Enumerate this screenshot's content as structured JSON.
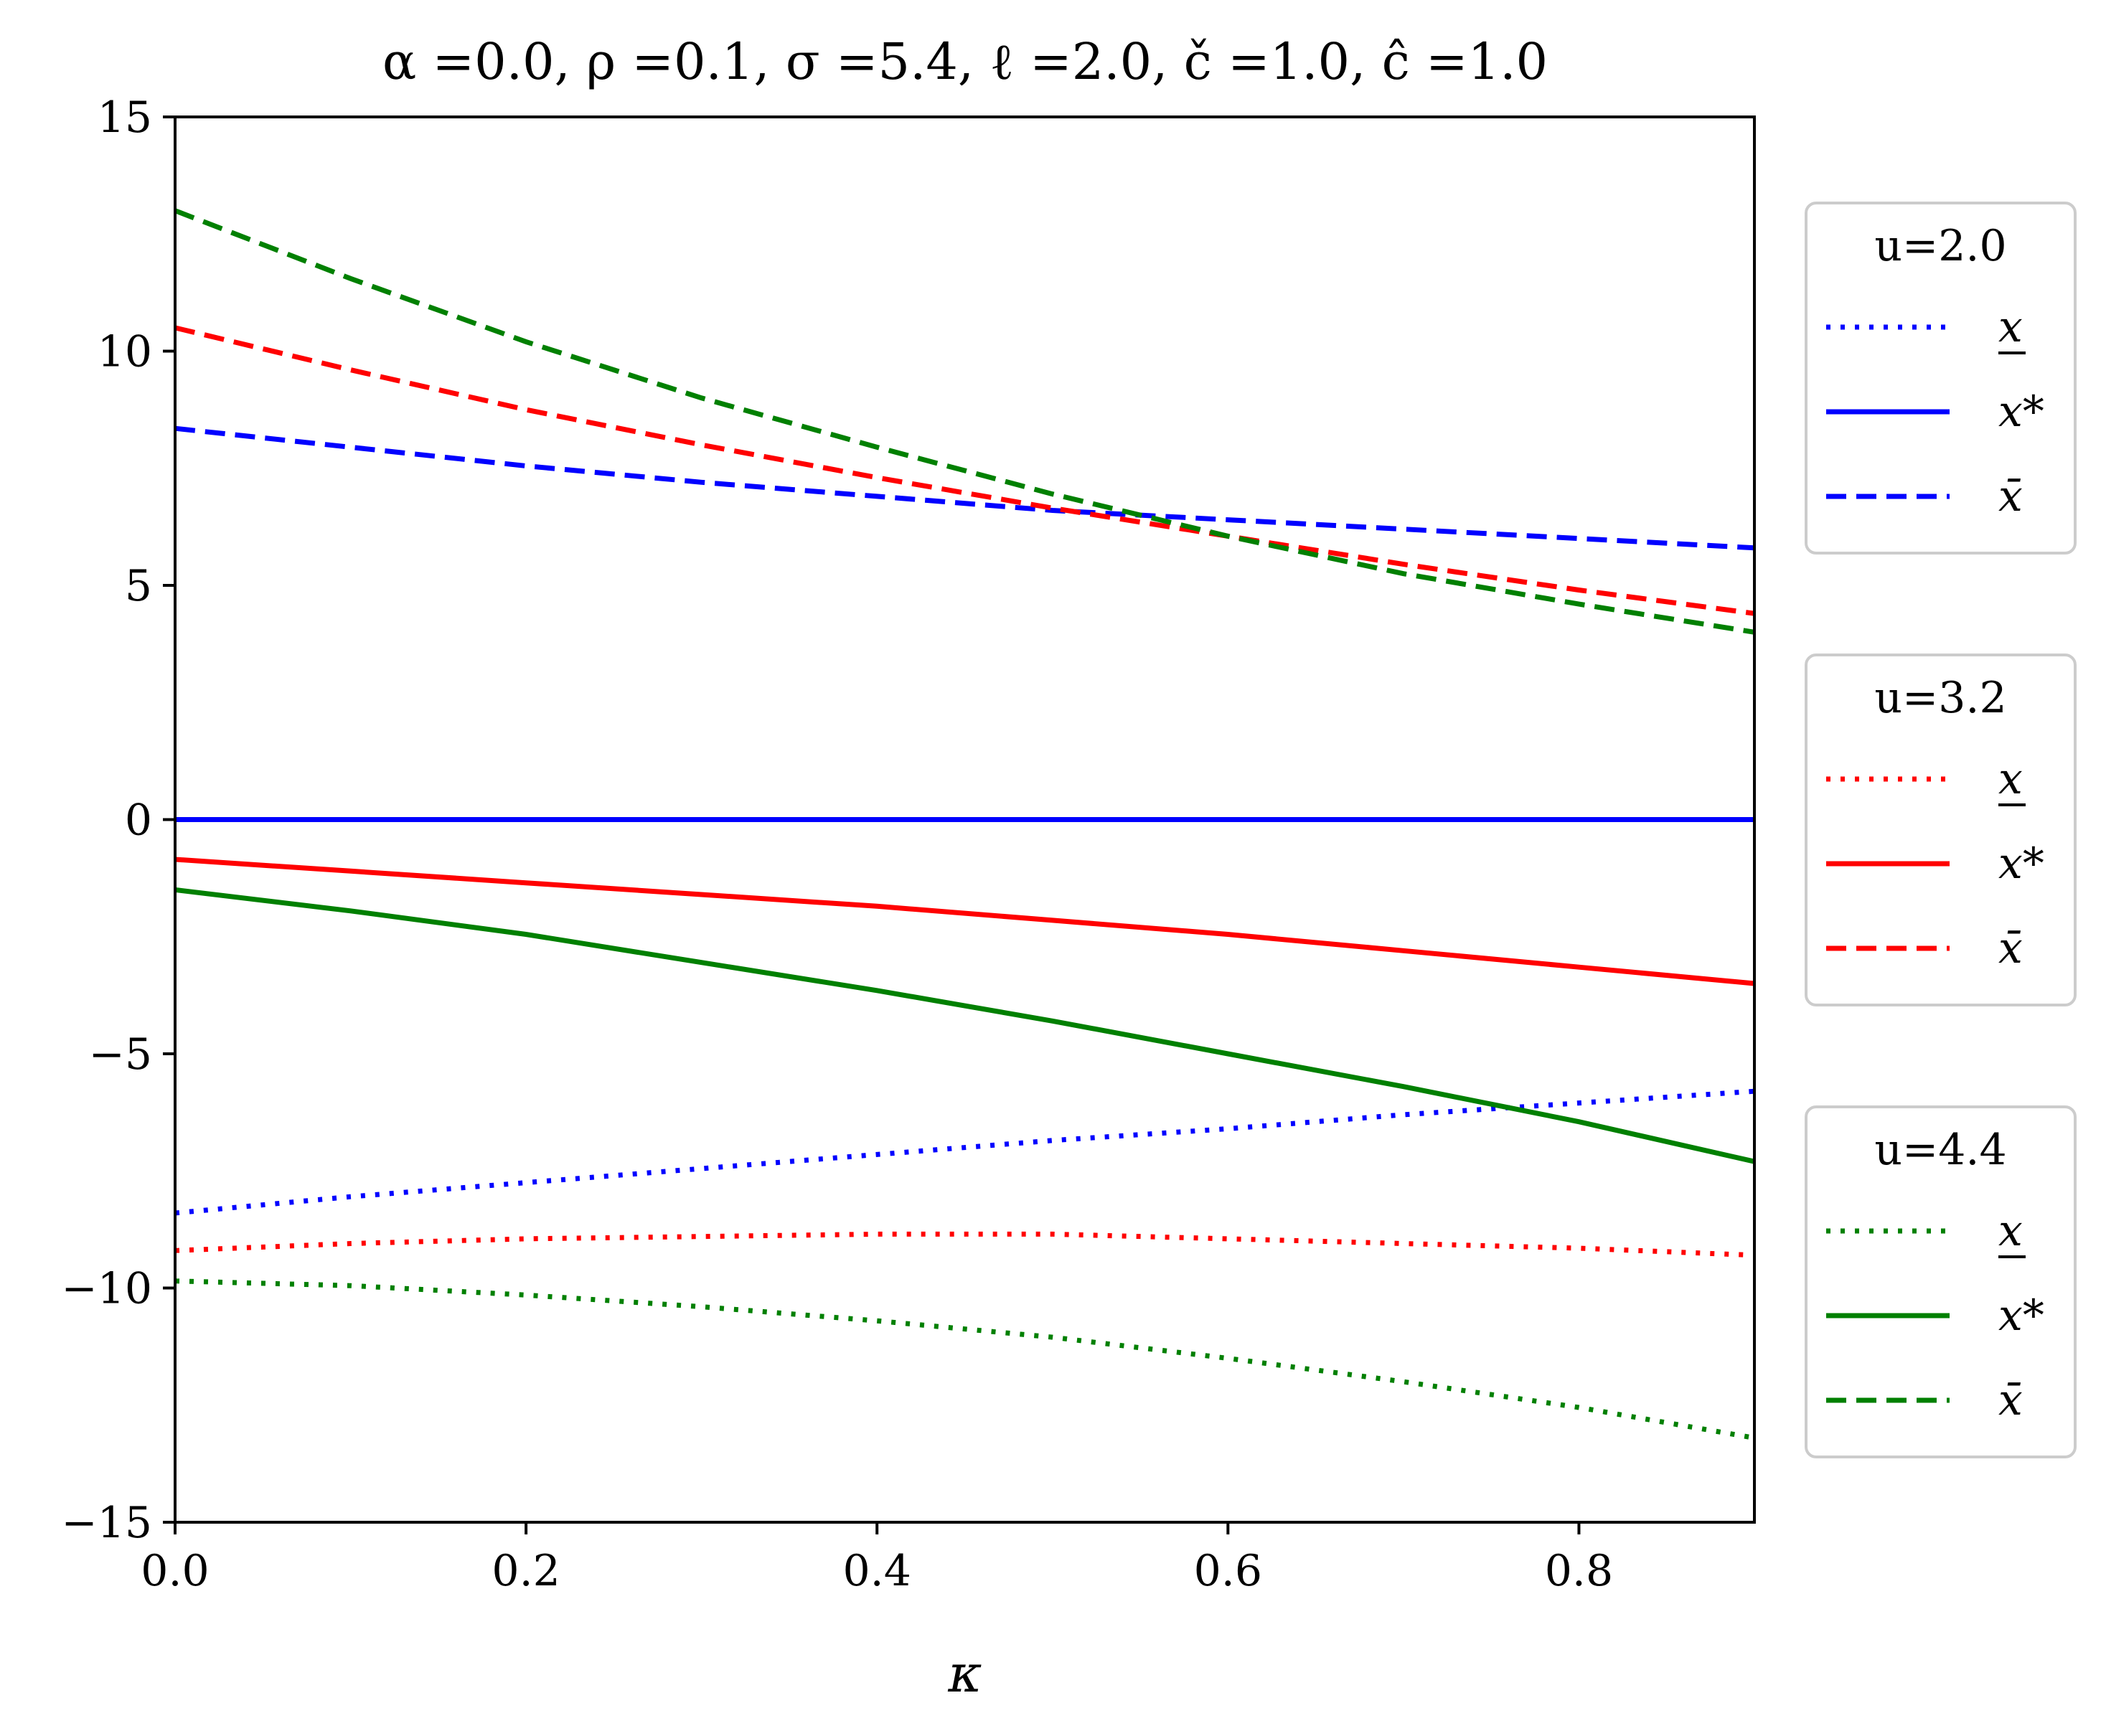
{
  "chart_data": {
    "type": "line",
    "title": "α =0.0, ρ =0.1, σ =5.4, ℓ =2.0, č =1.0, ĉ =1.0",
    "xlabel": "κ",
    "ylabel": "",
    "xlim": [
      0.0,
      0.9
    ],
    "ylim": [
      -15,
      15
    ],
    "xticks": [
      "0.0",
      "0.2",
      "0.4",
      "0.6",
      "0.8"
    ],
    "yticks": [
      "−15",
      "−10",
      "−5",
      "0",
      "5",
      "10",
      "15"
    ],
    "grid": false,
    "legend_placement": "right, outside (three stacked boxes)",
    "x": [
      0.0,
      0.1,
      0.2,
      0.3,
      0.4,
      0.5,
      0.6,
      0.7,
      0.8,
      0.9
    ],
    "legends": [
      {
        "title": "u=2.0",
        "color": "#0000ff",
        "entries": [
          "x",
          "x*",
          "x̄"
        ]
      },
      {
        "title": "u=3.2",
        "color": "#ff0000",
        "entries": [
          "x",
          "x*",
          "x̄"
        ]
      },
      {
        "title": "u=4.4",
        "color": "#008000",
        "entries": [
          "x",
          "x*",
          "x̄"
        ]
      }
    ],
    "series": [
      {
        "group": "u=2.0",
        "kind": "lower",
        "style": "dotted",
        "color": "#0000ff",
        "values": [
          -8.4,
          -8.05,
          -7.75,
          -7.45,
          -7.15,
          -6.85,
          -6.6,
          -6.3,
          -6.05,
          -5.8
        ]
      },
      {
        "group": "u=2.0",
        "kind": "optimal",
        "style": "solid",
        "color": "#0000ff",
        "values": [
          0,
          0,
          0,
          0,
          0,
          0,
          0,
          0,
          0,
          0
        ]
      },
      {
        "group": "u=2.0",
        "kind": "upper",
        "style": "dashed",
        "color": "#0000ff",
        "values": [
          8.35,
          7.95,
          7.55,
          7.2,
          6.9,
          6.6,
          6.4,
          6.2,
          6.0,
          5.8
        ]
      },
      {
        "group": "u=3.2",
        "kind": "lower",
        "style": "dotted",
        "color": "#ff0000",
        "values": [
          -9.2,
          -9.05,
          -8.95,
          -8.9,
          -8.85,
          -8.85,
          -8.95,
          -9.05,
          -9.15,
          -9.3
        ]
      },
      {
        "group": "u=3.2",
        "kind": "optimal",
        "style": "solid",
        "color": "#ff0000",
        "values": [
          -0.85,
          -1.1,
          -1.35,
          -1.6,
          -1.85,
          -2.15,
          -2.45,
          -2.8,
          -3.15,
          -3.5
        ]
      },
      {
        "group": "u=3.2",
        "kind": "upper",
        "style": "dashed",
        "color": "#ff0000",
        "values": [
          10.5,
          9.6,
          8.75,
          8.0,
          7.3,
          6.65,
          6.05,
          5.45,
          4.9,
          4.4
        ]
      },
      {
        "group": "u=4.4",
        "kind": "lower",
        "style": "dotted",
        "color": "#008000",
        "values": [
          -9.85,
          -9.95,
          -10.15,
          -10.4,
          -10.7,
          -11.05,
          -11.5,
          -12.0,
          -12.55,
          -13.2
        ]
      },
      {
        "group": "u=4.4",
        "kind": "optimal",
        "style": "solid",
        "color": "#008000",
        "values": [
          -1.5,
          -1.95,
          -2.45,
          -3.05,
          -3.65,
          -4.3,
          -5.0,
          -5.7,
          -6.45,
          -7.3
        ]
      },
      {
        "group": "u=4.4",
        "kind": "upper",
        "style": "dashed",
        "color": "#008000",
        "values": [
          13.0,
          11.55,
          10.2,
          9.0,
          7.95,
          6.95,
          6.05,
          5.25,
          4.6,
          4.0
        ]
      }
    ]
  }
}
